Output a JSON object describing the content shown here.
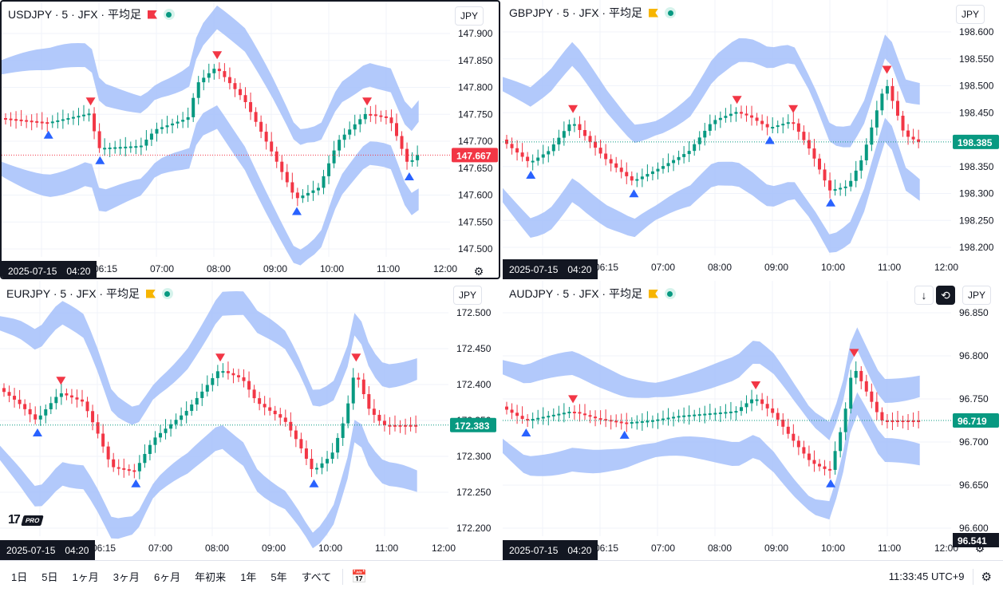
{
  "colors": {
    "up": "#089981",
    "down": "#f23645",
    "band": "#a4c0fa",
    "bg": "#ffffff",
    "text": "#131722"
  },
  "bottom_bar": {
    "ranges": [
      "1日",
      "5日",
      "1ヶ月",
      "3ヶ月",
      "6ヶ月",
      "年初来",
      "1年",
      "5年",
      "すべて"
    ],
    "time": "11:33:45 UTC+9",
    "date_range_icon": "calendar-range-icon",
    "settings_icon": "adjust-icon"
  },
  "panes": [
    {
      "id": "usdjpy",
      "title": "USDJPY · 5 · JFX · 平均足",
      "flag": "red",
      "currency": "JPY",
      "date_label": "2025-07-15　04:20",
      "last_price": "147.667",
      "last_color": "#f23645",
      "y_ticks": [
        "147.900",
        "147.850",
        "147.800",
        "147.750",
        "147.700",
        "147.650",
        "147.600",
        "147.550",
        "147.500"
      ],
      "x_ticks": [
        "06:15",
        "07:00",
        "08:00",
        "09:00",
        "10:00",
        "11:00",
        "12:00"
      ]
    },
    {
      "id": "gbpjpy",
      "title": "GBPJPY · 5 · JFX · 平均足",
      "flag": "yellow",
      "currency": "JPY",
      "date_label": "2025-07-15　04:20",
      "last_price": "198.385",
      "last_color": "#089981",
      "y_ticks": [
        "198.600",
        "198.550",
        "198.500",
        "198.450",
        "198.400",
        "198.350",
        "198.300",
        "198.250",
        "198.200"
      ],
      "x_ticks": [
        "06:15",
        "07:00",
        "08:00",
        "09:00",
        "10:00",
        "11:00",
        "12:00"
      ]
    },
    {
      "id": "eurjpy",
      "title": "EURJPY · 5 · JFX · 平均足",
      "flag": "yellow",
      "currency": "JPY",
      "date_label": "2025-07-15　04:20",
      "last_price": "172.383",
      "last_color": "#089981",
      "y_ticks": [
        "172.500",
        "172.450",
        "172.400",
        "172.350",
        "172.300",
        "172.250",
        "172.200"
      ],
      "x_ticks": [
        "06:15",
        "07:00",
        "08:00",
        "09:00",
        "10:00",
        "11:00",
        "12:00"
      ]
    },
    {
      "id": "audjpy",
      "title": "AUDJPY · 5 · JFX · 平均足",
      "flag": "yellow",
      "currency": "JPY",
      "date_label": "2025-07-15　04:20",
      "last_price": "96.719",
      "last_color": "#089981",
      "clipped_price": "96.541",
      "y_ticks": [
        "96.850",
        "96.800",
        "96.750",
        "96.700",
        "96.650",
        "96.600"
      ],
      "x_ticks": [
        "06:15",
        "07:00",
        "08:00",
        "09:00",
        "10:00",
        "11:00",
        "12:00"
      ]
    }
  ]
}
